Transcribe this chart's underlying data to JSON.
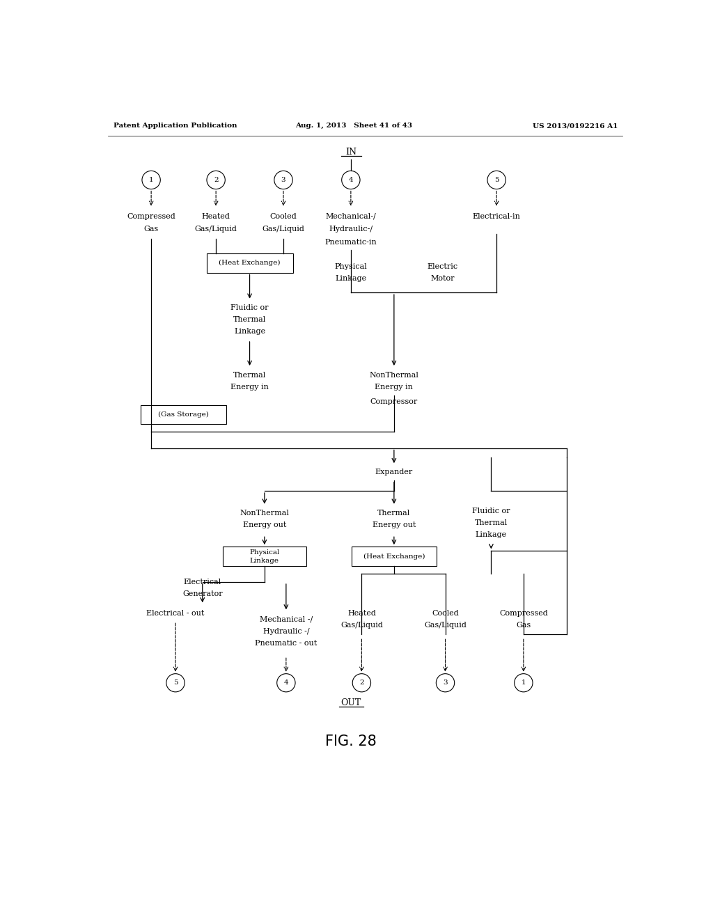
{
  "title": "FIG. 28",
  "header_left": "Patent Application Publication",
  "header_mid": "Aug. 1, 2013   Sheet 41 of 43",
  "header_right": "US 2013/0192216 A1",
  "bg_color": "#ffffff",
  "text_color": "#000000"
}
